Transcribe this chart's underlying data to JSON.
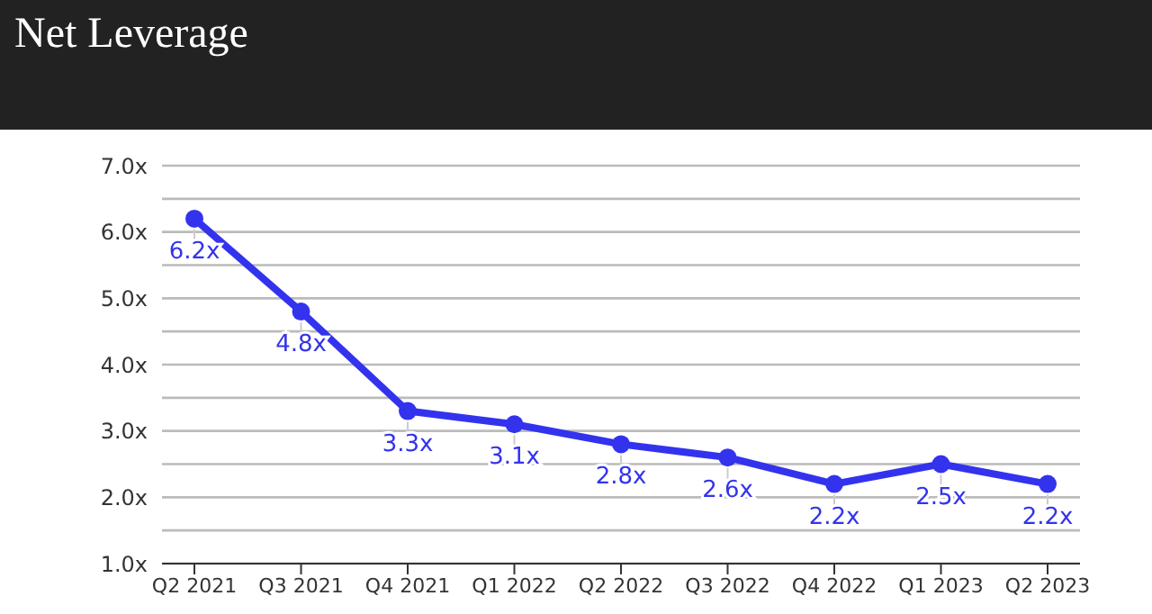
{
  "chart_data": {
    "type": "line",
    "title": "Net Leverage",
    "categories": [
      "Q2 2021",
      "Q3 2021",
      "Q4 2021",
      "Q1 2022",
      "Q2 2022",
      "Q3 2022",
      "Q4 2022",
      "Q1 2023",
      "Q2 2023"
    ],
    "series": [
      {
        "color": "#3333ee",
        "values": [
          6.2,
          4.8,
          3.3,
          3.1,
          2.8,
          2.6,
          2.2,
          2.5,
          2.2
        ]
      }
    ],
    "value_labels": [
      "6.2x",
      "4.8x",
      "3.3x",
      "3.1x",
      "2.8x",
      "2.6x",
      "2.2x",
      "2.5x",
      "2.2x"
    ],
    "ylim": [
      1,
      7
    ],
    "yticks": [
      {
        "value": 1,
        "label": "1.0x"
      },
      {
        "value": 1.5,
        "label": null
      },
      {
        "value": 2,
        "label": "2.0x"
      },
      {
        "value": 2.5,
        "label": null
      },
      {
        "value": 3,
        "label": "3.0x"
      },
      {
        "value": 3.5,
        "label": null
      },
      {
        "value": 4,
        "label": "4.0x"
      },
      {
        "value": 4.5,
        "label": null
      },
      {
        "value": 5,
        "label": "5.0x"
      },
      {
        "value": 5.5,
        "label": null
      },
      {
        "value": 6,
        "label": "6.0x"
      },
      {
        "value": 6.5,
        "label": null
      },
      {
        "value": 7,
        "label": "7.0x"
      }
    ],
    "grid": "y",
    "marker": "circle",
    "line_style": "solid"
  }
}
